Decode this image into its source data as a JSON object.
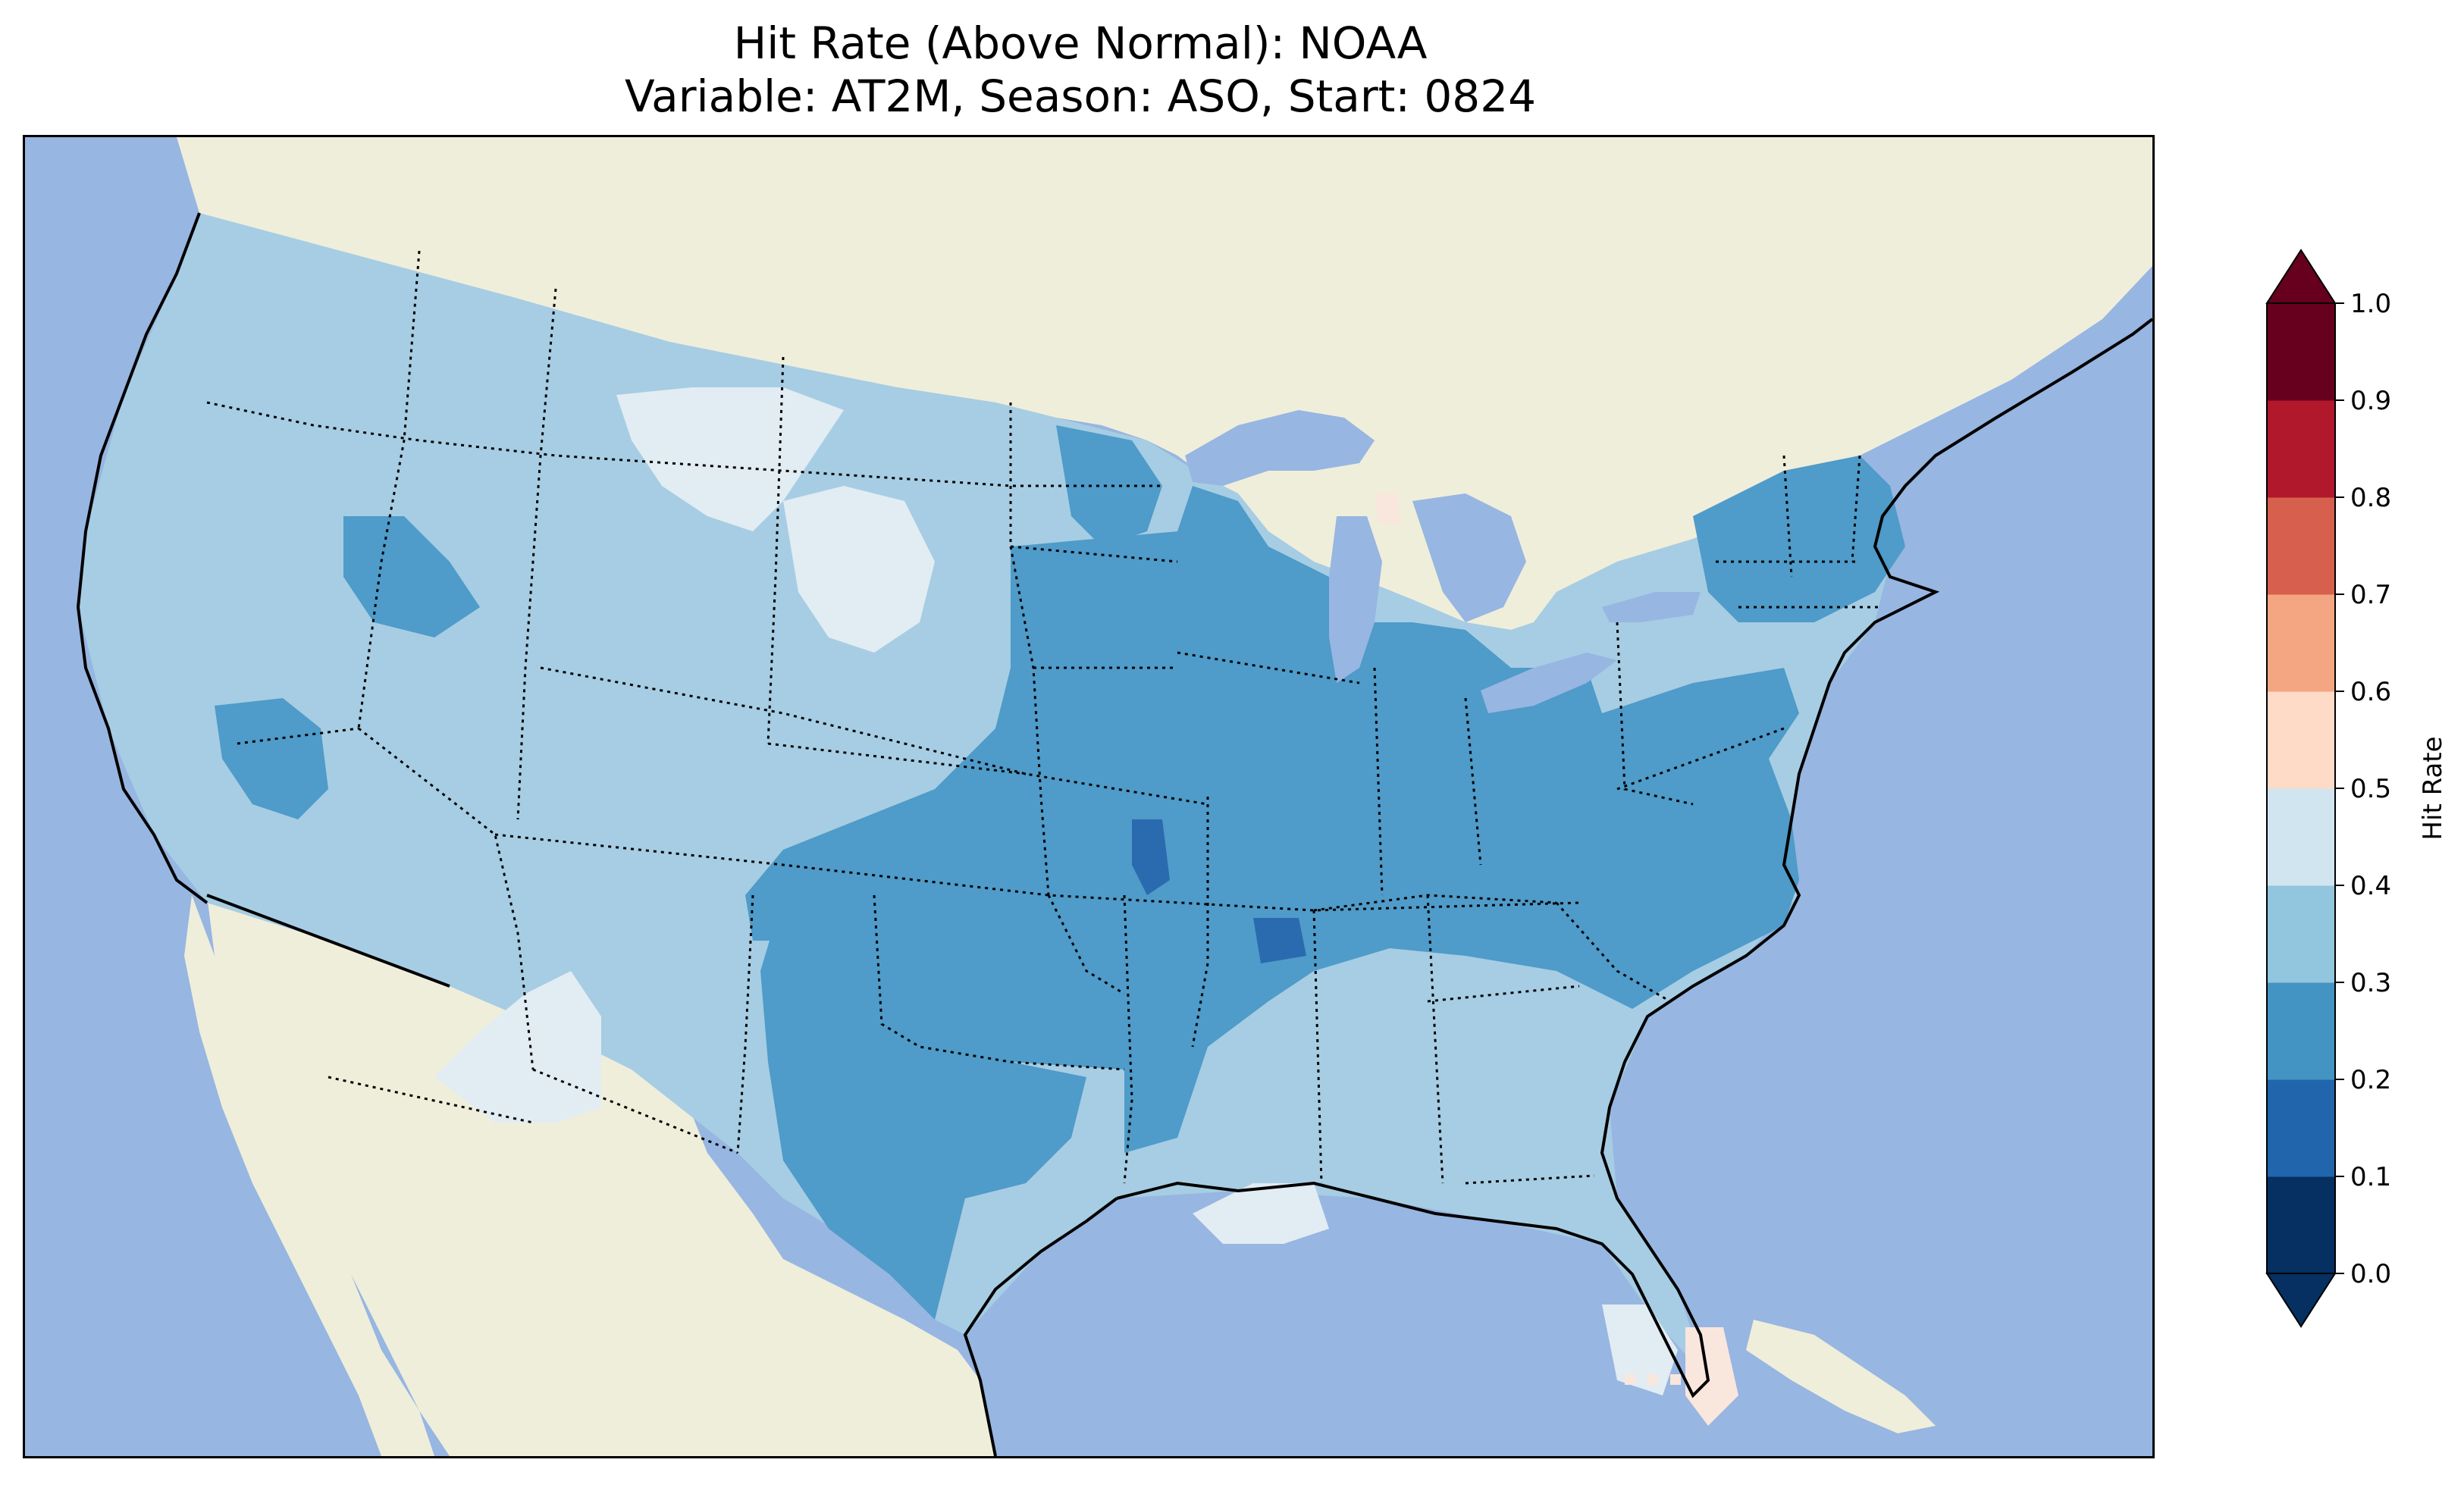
{
  "title": {
    "line1": "Hit Rate (Above Normal): NOAA",
    "line2": "Variable: AT2M, Season: ASO, Start: 0824"
  },
  "map": {
    "region": "contiguous-united-states",
    "projection": "lambert-conformal",
    "ocean_color": "#97b6e1",
    "land_color": "#efeedb",
    "lakes_color": "#97b6e1",
    "state_borders": "dotted",
    "coastlines": "solid"
  },
  "colorbar": {
    "label": "Hit Rate",
    "orientation": "vertical",
    "extend": "both",
    "levels": [
      0.0,
      0.1,
      0.2,
      0.3,
      0.4,
      0.5,
      0.6,
      0.7,
      0.8,
      0.9,
      1.0
    ],
    "tick_labels": [
      "0.0",
      "0.1",
      "0.2",
      "0.3",
      "0.4",
      "0.5",
      "0.6",
      "0.7",
      "0.8",
      "0.9",
      "1.0"
    ],
    "colors": [
      "#053061",
      "#2166ac",
      "#4393c3",
      "#92c5de",
      "#d1e5f0",
      "#fddbc7",
      "#f4a582",
      "#d6604d",
      "#b2182b",
      "#67001f"
    ],
    "under_color": "#053061",
    "over_color": "#67001f"
  },
  "palette": {
    "c02": "#2a6bb0",
    "c03": "#4f9bc9",
    "c04": "#a6cde3",
    "c05": "#e2ecf3",
    "c06": "#f9e6dd"
  }
}
